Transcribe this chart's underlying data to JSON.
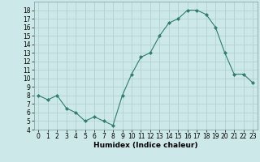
{
  "x": [
    0,
    1,
    2,
    3,
    4,
    5,
    6,
    7,
    8,
    9,
    10,
    11,
    12,
    13,
    14,
    15,
    16,
    17,
    18,
    19,
    20,
    21,
    22,
    23
  ],
  "y": [
    8,
    7.5,
    8,
    6.5,
    6,
    5,
    5.5,
    5,
    4.5,
    8,
    10.5,
    12.5,
    13,
    15,
    16.5,
    17,
    18,
    18,
    17.5,
    16,
    13,
    10.5,
    10.5,
    9.5
  ],
  "line_color": "#2e7d6e",
  "marker": "D",
  "marker_size": 2,
  "bg_color": "#cde8e8",
  "grid_color": "#b0cece",
  "xlabel": "Humidex (Indice chaleur)",
  "xlim": [
    -0.5,
    23.5
  ],
  "ylim": [
    4,
    19
  ],
  "yticks": [
    4,
    5,
    6,
    7,
    8,
    9,
    10,
    11,
    12,
    13,
    14,
    15,
    16,
    17,
    18
  ],
  "xticks": [
    0,
    1,
    2,
    3,
    4,
    5,
    6,
    7,
    8,
    9,
    10,
    11,
    12,
    13,
    14,
    15,
    16,
    17,
    18,
    19,
    20,
    21,
    22,
    23
  ],
  "label_fontsize": 6.5,
  "tick_fontsize": 5.5
}
